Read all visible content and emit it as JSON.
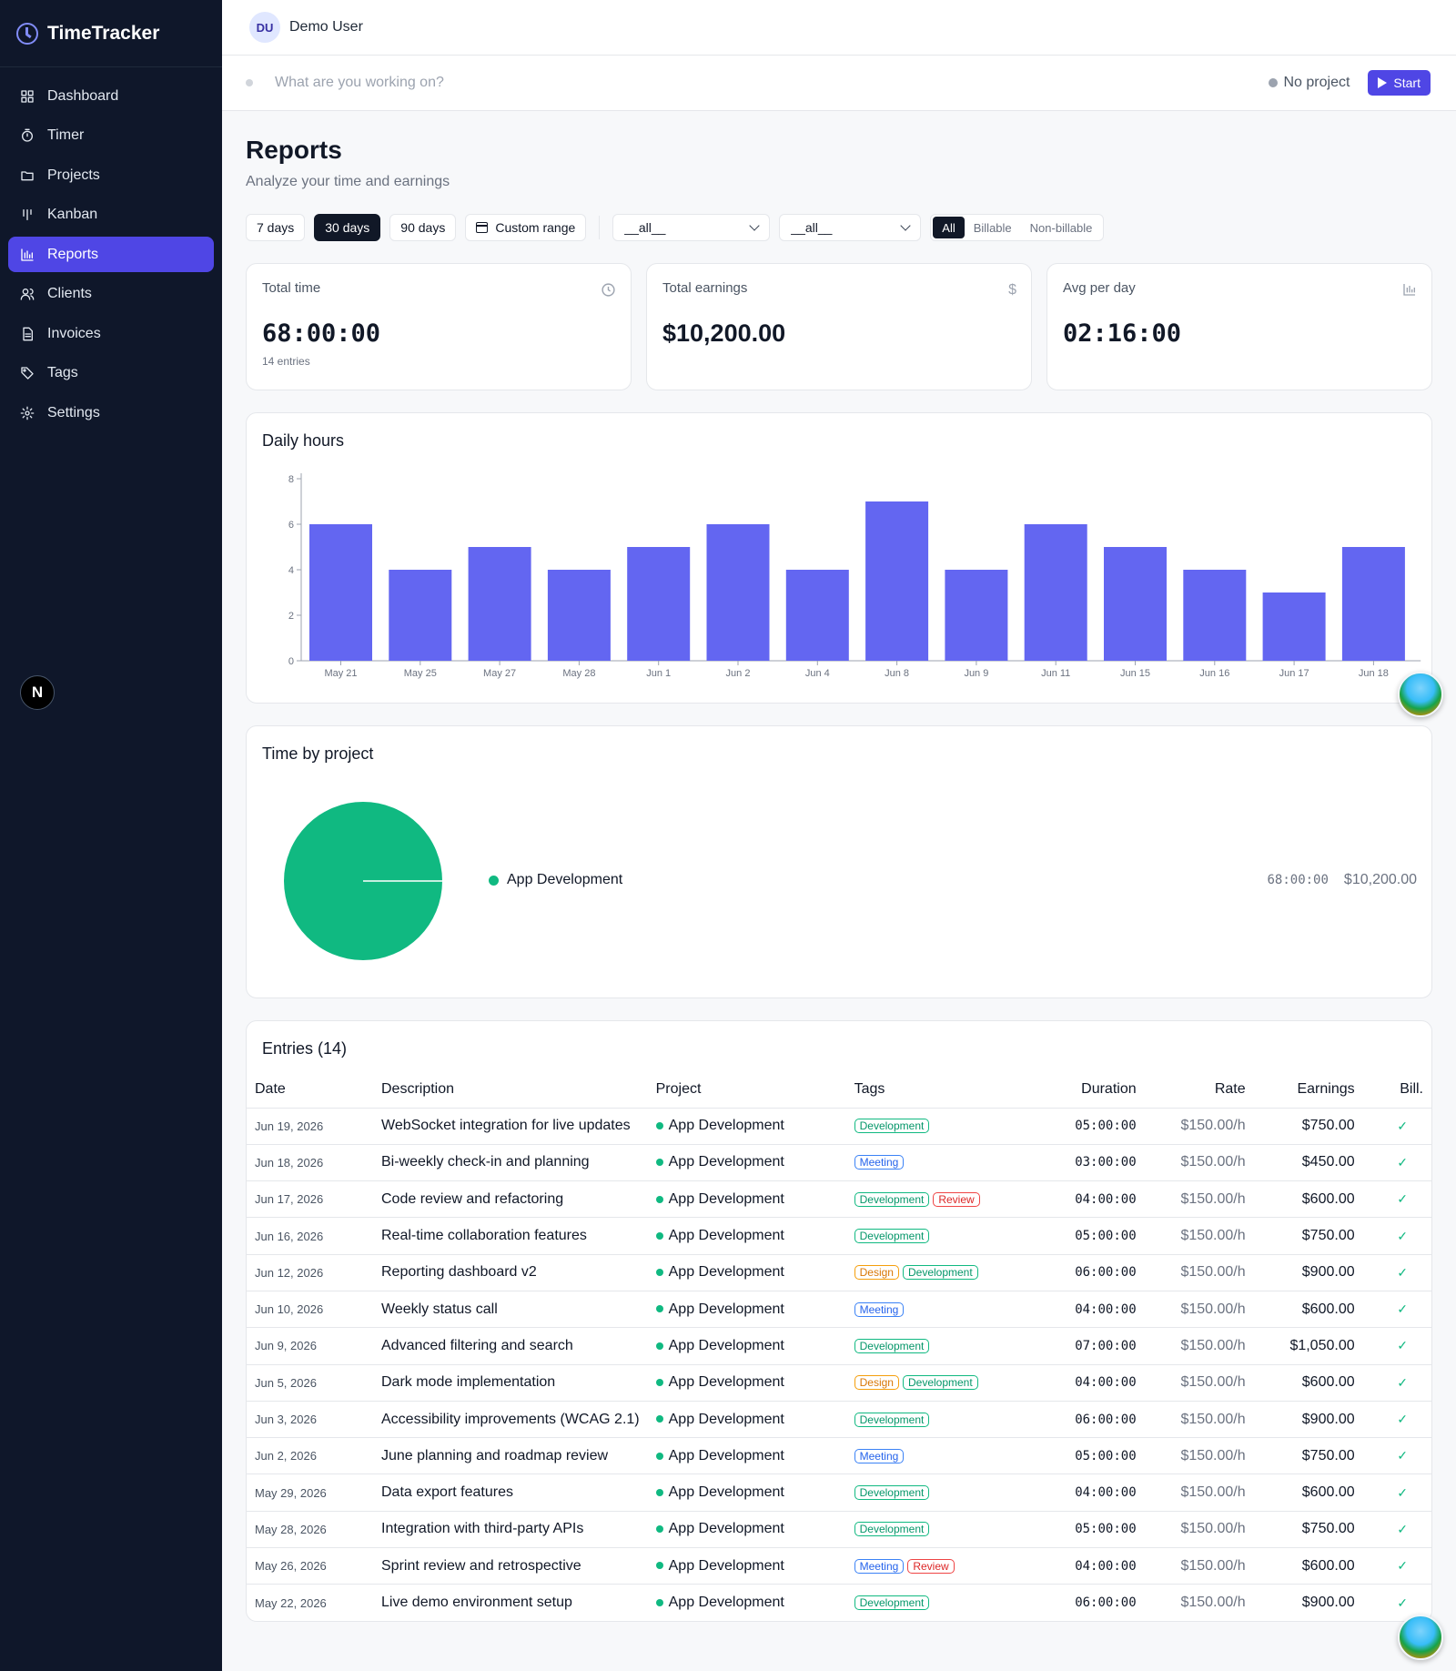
{
  "app": {
    "name": "TimeTracker"
  },
  "nav": [
    {
      "label": "Dashboard",
      "icon": "grid-icon",
      "active": false
    },
    {
      "label": "Timer",
      "icon": "stopwatch-icon",
      "active": false
    },
    {
      "label": "Projects",
      "icon": "folder-icon",
      "active": false
    },
    {
      "label": "Kanban",
      "icon": "kanban-icon",
      "active": false
    },
    {
      "label": "Reports",
      "icon": "bar-chart-icon",
      "active": true
    },
    {
      "label": "Clients",
      "icon": "users-icon",
      "active": false
    },
    {
      "label": "Invoices",
      "icon": "document-icon",
      "active": false
    },
    {
      "label": "Tags",
      "icon": "tag-icon",
      "active": false
    },
    {
      "label": "Settings",
      "icon": "gear-icon",
      "active": false
    }
  ],
  "sidebar_badge": "N",
  "user": {
    "initials": "DU",
    "name": "Demo User"
  },
  "timer": {
    "placeholder": "What are you working on?",
    "project": "No project",
    "start_label": "Start"
  },
  "page": {
    "title": "Reports",
    "subtitle": "Analyze your time and earnings"
  },
  "filters": {
    "ranges": [
      {
        "label": "7 days",
        "active": false
      },
      {
        "label": "30 days",
        "active": true
      },
      {
        "label": "90 days",
        "active": false
      }
    ],
    "custom_label": "Custom range",
    "select_1": "__all__",
    "select_2": "__all__",
    "billing": [
      {
        "label": "All",
        "active": true
      },
      {
        "label": "Billable",
        "active": false
      },
      {
        "label": "Non-billable",
        "active": false
      }
    ]
  },
  "stats": {
    "total_time": {
      "label": "Total time",
      "value": "68:00:00",
      "sub": "14 entries",
      "icon": "clock-icon"
    },
    "total_earnings": {
      "label": "Total earnings",
      "value": "$10,200.00",
      "icon": "dollar-icon"
    },
    "avg_per_day": {
      "label": "Avg per day",
      "value": "02:16:00",
      "icon": "bar-chart-icon"
    }
  },
  "daily": {
    "title": "Daily hours"
  },
  "chart_data": [
    {
      "type": "bar",
      "title": "Daily hours",
      "categories": [
        "May 21",
        "May 25",
        "May 27",
        "May 28",
        "Jun 1",
        "Jun 2",
        "Jun 4",
        "Jun 8",
        "Jun 9",
        "Jun 11",
        "Jun 15",
        "Jun 16",
        "Jun 17",
        "Jun 18"
      ],
      "values": [
        6,
        4,
        5,
        4,
        5,
        6,
        4,
        7,
        4,
        6,
        5,
        4,
        3,
        5
      ],
      "yticks": [
        0,
        2,
        4,
        6,
        8
      ],
      "ylim": [
        0,
        8
      ],
      "color": "#6366f1",
      "grid": false
    },
    {
      "type": "pie",
      "title": "Time by project",
      "labels": [
        "App Development"
      ],
      "values": [
        100
      ],
      "colors": [
        "#10b981"
      ]
    }
  ],
  "project_section": {
    "title": "Time by project",
    "items": [
      {
        "name": "App Development",
        "duration": "68:00:00",
        "earnings": "$10,200.00",
        "color": "#10b981"
      }
    ]
  },
  "entries": {
    "title": "Entries (14)",
    "columns": {
      "date": "Date",
      "description": "Description",
      "project": "Project",
      "tags": "Tags",
      "duration": "Duration",
      "rate": "Rate",
      "earnings": "Earnings",
      "billable": "Bill."
    },
    "rows": [
      {
        "date": "Jun 19, 2026",
        "description": "WebSocket integration for live updates",
        "project": "App Development",
        "tags": [
          "Development"
        ],
        "duration": "05:00:00",
        "rate": "$150.00/h",
        "earnings": "$750.00",
        "billable": "✓"
      },
      {
        "date": "Jun 18, 2026",
        "description": "Bi-weekly check-in and planning",
        "project": "App Development",
        "tags": [
          "Meeting"
        ],
        "duration": "03:00:00",
        "rate": "$150.00/h",
        "earnings": "$450.00",
        "billable": "✓"
      },
      {
        "date": "Jun 17, 2026",
        "description": "Code review and refactoring",
        "project": "App Development",
        "tags": [
          "Development",
          "Review"
        ],
        "duration": "04:00:00",
        "rate": "$150.00/h",
        "earnings": "$600.00",
        "billable": "✓"
      },
      {
        "date": "Jun 16, 2026",
        "description": "Real-time collaboration features",
        "project": "App Development",
        "tags": [
          "Development"
        ],
        "duration": "05:00:00",
        "rate": "$150.00/h",
        "earnings": "$750.00",
        "billable": "✓"
      },
      {
        "date": "Jun 12, 2026",
        "description": "Reporting dashboard v2",
        "project": "App Development",
        "tags": [
          "Design",
          "Development"
        ],
        "duration": "06:00:00",
        "rate": "$150.00/h",
        "earnings": "$900.00",
        "billable": "✓"
      },
      {
        "date": "Jun 10, 2026",
        "description": "Weekly status call",
        "project": "App Development",
        "tags": [
          "Meeting"
        ],
        "duration": "04:00:00",
        "rate": "$150.00/h",
        "earnings": "$600.00",
        "billable": "✓"
      },
      {
        "date": "Jun 9, 2026",
        "description": "Advanced filtering and search",
        "project": "App Development",
        "tags": [
          "Development"
        ],
        "duration": "07:00:00",
        "rate": "$150.00/h",
        "earnings": "$1,050.00",
        "billable": "✓"
      },
      {
        "date": "Jun 5, 2026",
        "description": "Dark mode implementation",
        "project": "App Development",
        "tags": [
          "Design",
          "Development"
        ],
        "duration": "04:00:00",
        "rate": "$150.00/h",
        "earnings": "$600.00",
        "billable": "✓"
      },
      {
        "date": "Jun 3, 2026",
        "description": "Accessibility improvements (WCAG 2.1)",
        "project": "App Development",
        "tags": [
          "Development"
        ],
        "duration": "06:00:00",
        "rate": "$150.00/h",
        "earnings": "$900.00",
        "billable": "✓"
      },
      {
        "date": "Jun 2, 2026",
        "description": "June planning and roadmap review",
        "project": "App Development",
        "tags": [
          "Meeting"
        ],
        "duration": "05:00:00",
        "rate": "$150.00/h",
        "earnings": "$750.00",
        "billable": "✓"
      },
      {
        "date": "May 29, 2026",
        "description": "Data export features",
        "project": "App Development",
        "tags": [
          "Development"
        ],
        "duration": "04:00:00",
        "rate": "$150.00/h",
        "earnings": "$600.00",
        "billable": "✓"
      },
      {
        "date": "May 28, 2026",
        "description": "Integration with third-party APIs",
        "project": "App Development",
        "tags": [
          "Development"
        ],
        "duration": "05:00:00",
        "rate": "$150.00/h",
        "earnings": "$750.00",
        "billable": "✓"
      },
      {
        "date": "May 26, 2026",
        "description": "Sprint review and retrospective",
        "project": "App Development",
        "tags": [
          "Meeting",
          "Review"
        ],
        "duration": "04:00:00",
        "rate": "$150.00/h",
        "earnings": "$600.00",
        "billable": "✓"
      },
      {
        "date": "May 22, 2026",
        "description": "Live demo environment setup",
        "project": "App Development",
        "tags": [
          "Development"
        ],
        "duration": "06:00:00",
        "rate": "$150.00/h",
        "earnings": "$900.00",
        "billable": "✓"
      }
    ]
  }
}
